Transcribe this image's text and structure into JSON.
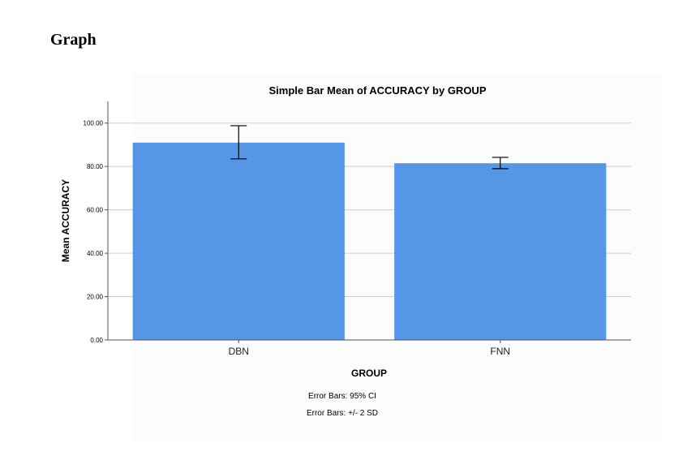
{
  "page": {
    "heading": "Graph"
  },
  "chart_data": {
    "type": "bar",
    "title": "Simple Bar Mean of ACCURACY by GROUP",
    "xlabel": "GROUP",
    "ylabel": "Mean ACCURACY",
    "categories": [
      "DBN",
      "FNN"
    ],
    "values": [
      91.0,
      81.5
    ],
    "error_bars": [
      {
        "low": 83.5,
        "high": 98.8
      },
      {
        "low": 79.0,
        "high": 84.2
      }
    ],
    "ylim": [
      0,
      110
    ],
    "yticks": [
      0,
      20,
      40,
      60,
      80,
      100
    ],
    "ytick_labels": [
      "0.00",
      "20.00",
      "40.00",
      "60.00",
      "80.00",
      "100.00"
    ],
    "grid": true,
    "bar_color": "#5597e6",
    "footnotes": [
      "Error Bars: 95% CI",
      "Error Bars: +/- 2 SD"
    ]
  }
}
